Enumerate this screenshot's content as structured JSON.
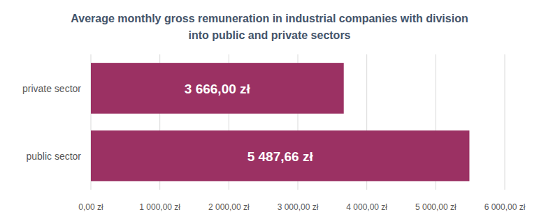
{
  "chart_data": {
    "type": "bar",
    "title": "Average monthly gross remuneration in industrial companies with division into public and private sectors",
    "orientation": "horizontal",
    "categories": [
      "private sector",
      "public sector"
    ],
    "values": [
      3666.0,
      5487.66
    ],
    "value_labels": [
      "3 666,00 zł",
      "5 487,66 zł"
    ],
    "data_labels": true,
    "color": "#9b3163",
    "xlim": [
      0,
      6000
    ],
    "xticks": [
      {
        "value": 0,
        "label": "0,00 zł"
      },
      {
        "value": 1000,
        "label": "1 000,00 zł"
      },
      {
        "value": 2000,
        "label": "2 000,00 zł"
      },
      {
        "value": 3000,
        "label": "3 000,00 zł"
      },
      {
        "value": 4000,
        "label": "4 000,00 zł"
      },
      {
        "value": 5000,
        "label": "5 000,00 zł"
      },
      {
        "value": 6000,
        "label": "6 000,00 zł"
      }
    ],
    "grid": true
  }
}
